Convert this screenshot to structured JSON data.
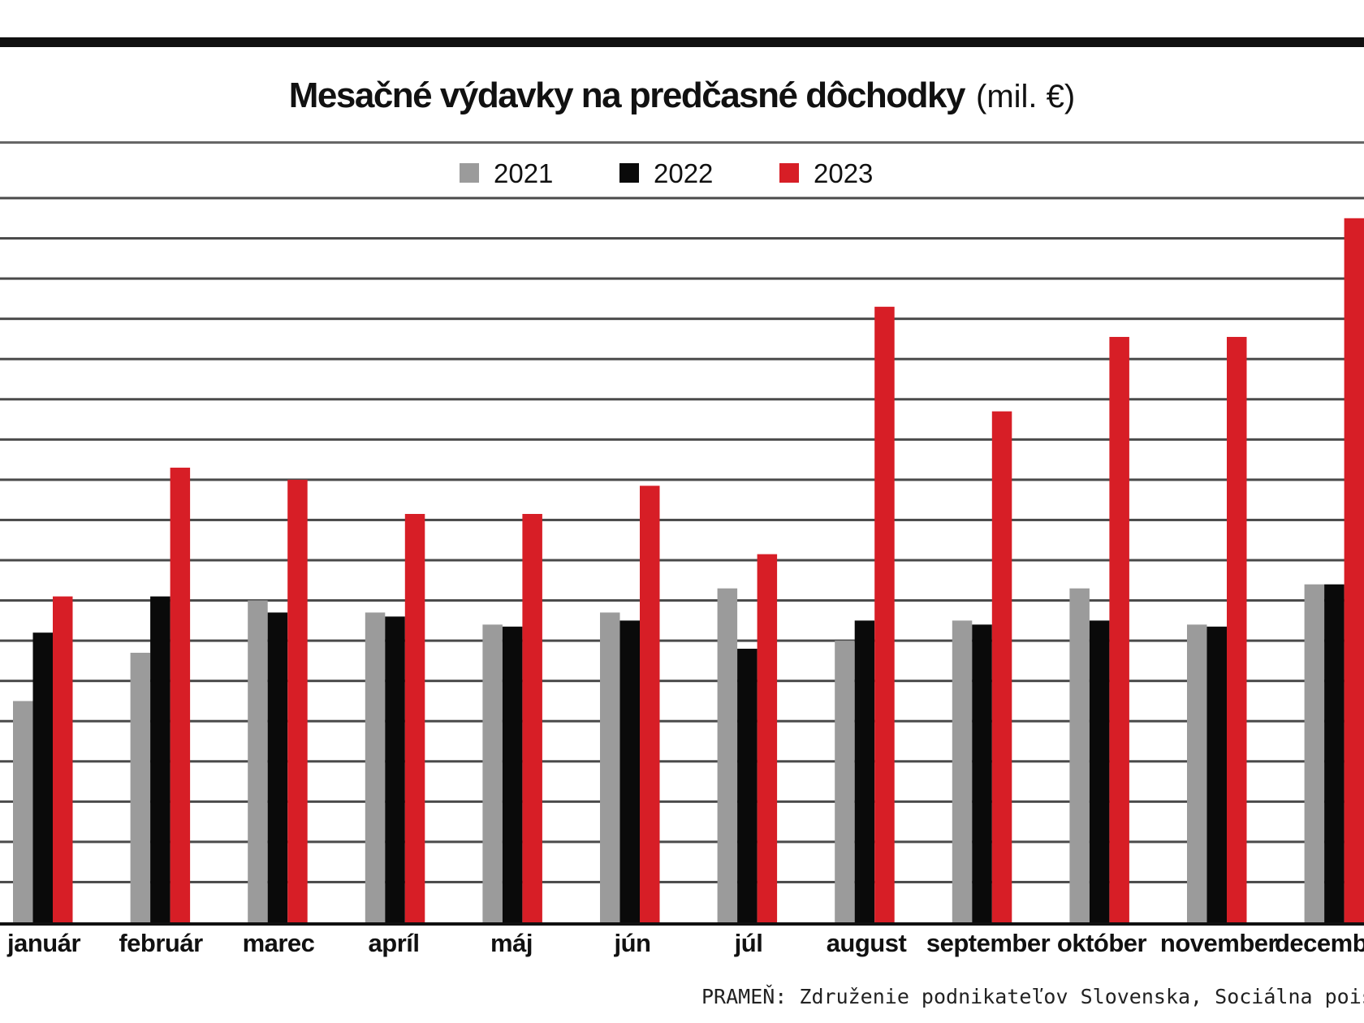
{
  "chart_data": {
    "type": "bar",
    "title": "Mesačné výdavky na predčasné dôchodky",
    "unit": "(mil. €)",
    "categories": [
      "január",
      "február",
      "marec",
      "apríl",
      "máj",
      "jún",
      "júl",
      "august",
      "september",
      "október",
      "november",
      "december"
    ],
    "series": [
      {
        "name": "2021",
        "color": "#9b9b9b",
        "values": [
          5.5,
          6.7,
          8.0,
          7.7,
          7.4,
          7.7,
          8.3,
          7.0,
          7.5,
          8.3,
          7.4,
          8.4
        ]
      },
      {
        "name": "2022",
        "color": "#0a0a0a",
        "values": [
          7.2,
          8.1,
          7.7,
          7.6,
          7.35,
          7.5,
          6.8,
          7.5,
          7.4,
          7.5,
          7.35,
          8.4
        ]
      },
      {
        "name": "2023",
        "color": "#d71e26",
        "values": [
          8.1,
          11.3,
          11.0,
          10.15,
          10.15,
          10.85,
          9.15,
          15.3,
          12.7,
          14.55,
          14.55,
          17.5
        ]
      }
    ],
    "ylim": [
      0,
      18
    ],
    "grid_step": 1,
    "grid": true,
    "legend": "top-center",
    "xlabel": "",
    "ylabel": "",
    "source": "PRAMEŇ: Združenie podnikateľov Slovenska, Sociálna poisťovňa"
  }
}
